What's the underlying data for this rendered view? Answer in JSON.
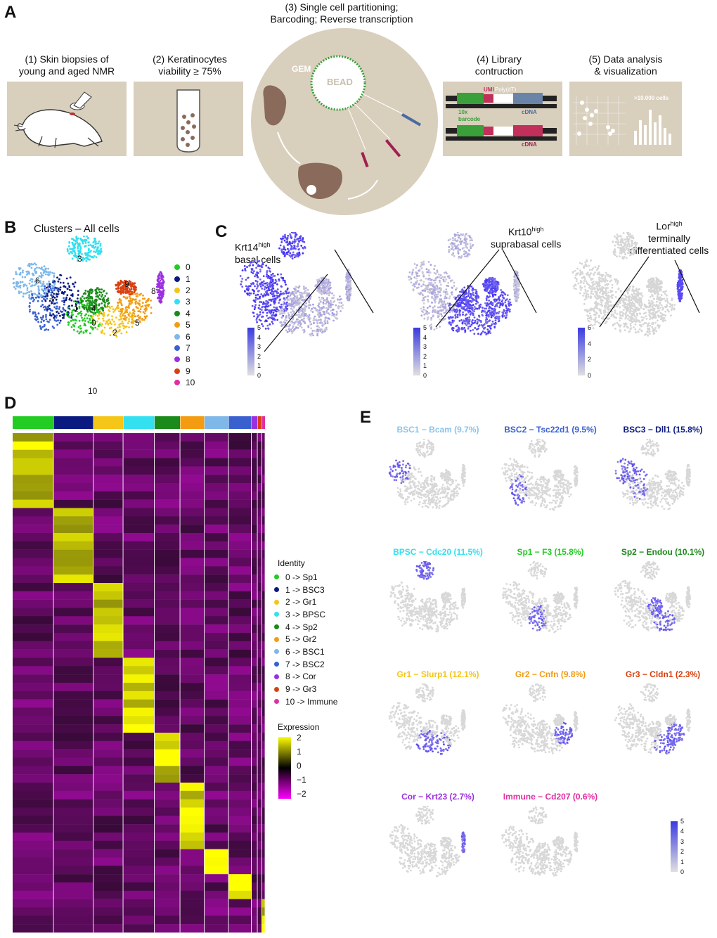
{
  "panels": {
    "a": "A",
    "b": "B",
    "c": "C",
    "d": "D",
    "e": "E"
  },
  "workflow": {
    "step1": [
      "(1) Skin biopsies of",
      "young and aged NMR"
    ],
    "step2": [
      "(2) Keratinocytes",
      "viability ≥ 75%"
    ],
    "step3": [
      "(3) Single cell partitioning;",
      "Barcoding; Reverse transcription"
    ],
    "step4": [
      "(4) Library",
      "contruction"
    ],
    "step5": [
      "(5) Data analysis",
      "& visualization"
    ],
    "gem": "GEM",
    "bead": "BEAD",
    "umi": "UMI",
    "polydt": "Poly(dT)",
    "barcode": [
      "10x",
      "barcode"
    ],
    "cdna": "cDNA",
    "cells": ">10.000 cells"
  },
  "clusters": {
    "title": "Clusters – All cells",
    "legend": [
      {
        "label": "0",
        "color": "#22cc22"
      },
      {
        "label": "1",
        "color": "#0a1a80"
      },
      {
        "label": "2",
        "color": "#f5c518"
      },
      {
        "label": "3",
        "color": "#33e0f0"
      },
      {
        "label": "4",
        "color": "#1a8a1a"
      },
      {
        "label": "5",
        "color": "#f39c12"
      },
      {
        "label": "6",
        "color": "#7fb8e8"
      },
      {
        "label": "7",
        "color": "#3a60d0"
      },
      {
        "label": "8",
        "color": "#9b30e0"
      },
      {
        "label": "9",
        "color": "#d84010"
      },
      {
        "label": "10",
        "color": "#e030a0"
      }
    ],
    "map_labels": [
      "0",
      "1",
      "2",
      "3",
      "4",
      "5",
      "6",
      "7",
      "8",
      "9",
      "10"
    ]
  },
  "feature_plots": {
    "krt14": {
      "gene": "Krt14",
      "sup": "high",
      "lines": [
        "basal cells"
      ],
      "scale": [
        "5",
        "4",
        "3",
        "2",
        "1",
        "0"
      ]
    },
    "krt10": {
      "gene": "Krt10",
      "sup": "high",
      "lines": [
        "suprabasal cells"
      ],
      "scale": [
        "5",
        "4",
        "3",
        "2",
        "1",
        "0"
      ]
    },
    "lor": {
      "gene": "Lor",
      "sup": "high",
      "lines": [
        "terminally",
        "differentiated cells"
      ],
      "scale": [
        "6",
        "4",
        "2",
        "0"
      ]
    }
  },
  "heatmap": {
    "identity_title": "Identity",
    "identity": [
      {
        "label": "0 -> Sp1",
        "color": "#22cc22"
      },
      {
        "label": "1 -> BSC3",
        "color": "#0a1a80"
      },
      {
        "label": "2 -> Gr1",
        "color": "#f5c518"
      },
      {
        "label": "3 -> BPSC",
        "color": "#33e0f0"
      },
      {
        "label": "4 -> Sp2",
        "color": "#1a8a1a"
      },
      {
        "label": "5 -> Gr2",
        "color": "#f39c12"
      },
      {
        "label": "6 -> BSC1",
        "color": "#7fb8e8"
      },
      {
        "label": "7 -> BSC2",
        "color": "#3a60d0"
      },
      {
        "label": "8 -> Cor",
        "color": "#9b30e0"
      },
      {
        "label": "9 -> Gr3",
        "color": "#d84010"
      },
      {
        "label": "10 -> Immune",
        "color": "#e030a0"
      }
    ],
    "expression_title": "Expression",
    "expression_ticks": [
      "2",
      "1",
      "0",
      "−1",
      "−2"
    ]
  },
  "subclusters": {
    "titles": [
      {
        "text": "BSC1 − Bcam (9.7%)",
        "color": "#8cc4ec"
      },
      {
        "text": "BSC2 − Tsc22d1 (9.5%)",
        "color": "#3a60d0"
      },
      {
        "text": "BSC3 − Dll1 (15.8%)",
        "color": "#0a1a80"
      },
      {
        "text": "BPSC − Cdc20 (11.5%)",
        "color": "#33e0f0"
      },
      {
        "text": "Sp1 − F3 (15.8%)",
        "color": "#22cc22"
      },
      {
        "text": "Sp2 − Endou (10.1%)",
        "color": "#1a8a1a"
      },
      {
        "text": "Gr1 − Slurp1 (12.1%)",
        "color": "#f5c518"
      },
      {
        "text": "Gr2 − Cnfn (9.8%)",
        "color": "#f39c12"
      },
      {
        "text": "Gr3 − Cldn1 (2.3%)",
        "color": "#d84010"
      },
      {
        "text": "Cor − Krt23 (2.7%)",
        "color": "#9b30e0"
      },
      {
        "text": "Immune − Cd207 (0.6%)",
        "color": "#e030a0"
      }
    ],
    "scale": [
      "5",
      "4",
      "3",
      "2",
      "1",
      "0"
    ]
  }
}
